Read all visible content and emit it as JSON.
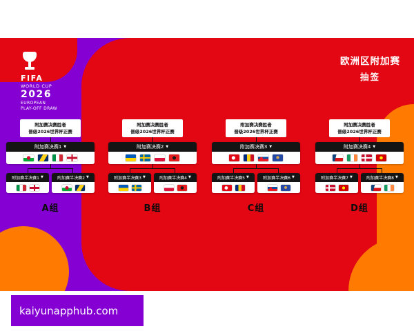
{
  "colors": {
    "purple": "#8400D3",
    "red": "#E30613",
    "orange": "#FF7A00",
    "header_black": "#141414"
  },
  "logo": {
    "fifa": "FIFA",
    "world_cup": "WORLD CUP",
    "year": "2026",
    "line1": "EUROPEAN",
    "line2": "PLAY-OFF DRAW"
  },
  "header": {
    "title": "欧洲区附加赛",
    "subtitle": "抽签"
  },
  "ui": {
    "caret": "▼"
  },
  "qualify": {
    "line1": "附加赛决赛胜者",
    "line2": "晋级2026世界杯正赛"
  },
  "flags_legend": {
    "ita": "italy",
    "nir": "northern-ireland",
    "wal": "wales",
    "bih": "bosnia-herzegovina",
    "ukr": "ukraine",
    "swe": "sweden",
    "pol": "poland",
    "alb": "albania",
    "tur": "turkey",
    "rou": "romania",
    "svk": "slovakia",
    "kos": "kosovo",
    "den": "denmark",
    "mkd": "north-macedonia",
    "cze": "czechia",
    "irl": "ireland"
  },
  "groups": [
    {
      "name": "A组",
      "final": "附加赛决赛1",
      "final_flags": [
        "wal",
        "bih",
        "ita",
        "nir"
      ],
      "semi1": {
        "label": "附加赛半决赛1",
        "flags": [
          "ita",
          "nir"
        ]
      },
      "semi2": {
        "label": "附加赛半决赛2",
        "flags": [
          "wal",
          "bih"
        ]
      }
    },
    {
      "name": "B组",
      "final": "附加赛决赛2",
      "final_flags": [
        "ukr",
        "swe",
        "pol",
        "alb"
      ],
      "semi1": {
        "label": "附加赛半决赛3",
        "flags": [
          "ukr",
          "swe"
        ]
      },
      "semi2": {
        "label": "附加赛半决赛4",
        "flags": [
          "pol",
          "alb"
        ]
      }
    },
    {
      "name": "C组",
      "final": "附加赛决赛3",
      "final_flags": [
        "tur",
        "rou",
        "svk",
        "kos"
      ],
      "semi1": {
        "label": "附加赛半决赛5",
        "flags": [
          "tur",
          "rou"
        ]
      },
      "semi2": {
        "label": "附加赛半决赛6",
        "flags": [
          "svk",
          "kos"
        ]
      }
    },
    {
      "name": "D组",
      "final": "附加赛决赛4",
      "final_flags": [
        "cze",
        "irl",
        "den",
        "mkd"
      ],
      "semi1": {
        "label": "附加赛半决赛7",
        "flags": [
          "den",
          "mkd"
        ]
      },
      "semi2": {
        "label": "附加赛半决赛8",
        "flags": [
          "cze",
          "irl"
        ]
      }
    }
  ],
  "footer": {
    "url": "kaiyunapphub.com"
  }
}
